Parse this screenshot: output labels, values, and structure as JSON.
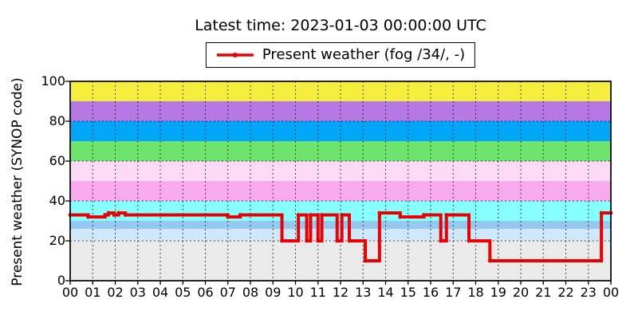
{
  "title": "Latest time: 2023-01-03 00:00:00 UTC",
  "legend": {
    "label": "Present weather (fog /34/, -)",
    "line_color": "#ea0000"
  },
  "axes": {
    "y_label": "Present weather (SYNOP code)",
    "y_ticks": [
      0,
      20,
      40,
      60,
      80,
      100
    ],
    "x_ticks": [
      "00",
      "01",
      "02",
      "03",
      "04",
      "05",
      "06",
      "07",
      "08",
      "09",
      "10",
      "11",
      "12",
      "13",
      "14",
      "15",
      "16",
      "17",
      "18",
      "19",
      "20",
      "21",
      "22",
      "23",
      "00"
    ]
  },
  "chart_data": {
    "type": "line",
    "step": "post",
    "title": "Latest time: 2023-01-03 00:00:00 UTC",
    "ylabel": "Present weather (SYNOP code)",
    "xlabel": "",
    "x_unit": "hour UTC",
    "xlim_hours": [
      0,
      24
    ],
    "ylim": [
      0,
      100
    ],
    "grid": true,
    "legend_position": "top-center",
    "series": [
      {
        "name": "Present weather (fog /34/, -)",
        "color": "#ea0000",
        "points_time_value": [
          [
            0,
            33
          ],
          [
            0.8,
            32
          ],
          [
            1.55,
            33
          ],
          [
            1.7,
            34
          ],
          [
            1.95,
            33
          ],
          [
            2.15,
            34
          ],
          [
            2.45,
            33
          ],
          [
            7.0,
            32
          ],
          [
            7.55,
            33
          ],
          [
            9.4,
            20
          ],
          [
            10.13,
            33
          ],
          [
            10.5,
            20
          ],
          [
            10.67,
            33
          ],
          [
            11.0,
            20
          ],
          [
            11.17,
            33
          ],
          [
            11.85,
            20
          ],
          [
            12.06,
            33
          ],
          [
            12.39,
            20
          ],
          [
            13.1,
            10
          ],
          [
            13.73,
            34
          ],
          [
            14.65,
            32
          ],
          [
            15.7,
            33
          ],
          [
            16.45,
            20
          ],
          [
            16.7,
            33
          ],
          [
            17.7,
            20
          ],
          [
            18.63,
            10
          ],
          [
            23.58,
            34
          ],
          [
            24,
            34
          ]
        ]
      }
    ],
    "background_bands": [
      {
        "from": 0,
        "to": 20,
        "color": "#eaeaea"
      },
      {
        "from": 20,
        "to": 26,
        "color": "#cfe9fb"
      },
      {
        "from": 26,
        "to": 30,
        "color": "#96c9f2"
      },
      {
        "from": 30,
        "to": 40,
        "color": "#87ffff"
      },
      {
        "from": 40,
        "to": 50,
        "color": "#f9aaec"
      },
      {
        "from": 50,
        "to": 60,
        "color": "#fcd9f4"
      },
      {
        "from": 60,
        "to": 70,
        "color": "#6ee36e"
      },
      {
        "from": 70,
        "to": 80,
        "color": "#00a6f8"
      },
      {
        "from": 80,
        "to": 90,
        "color": "#b578e5"
      },
      {
        "from": 90,
        "to": 100,
        "color": "#f5ee3c"
      }
    ],
    "grid_y_values": [
      20,
      40,
      60,
      80
    ],
    "grid_x_every_hours": 1
  }
}
